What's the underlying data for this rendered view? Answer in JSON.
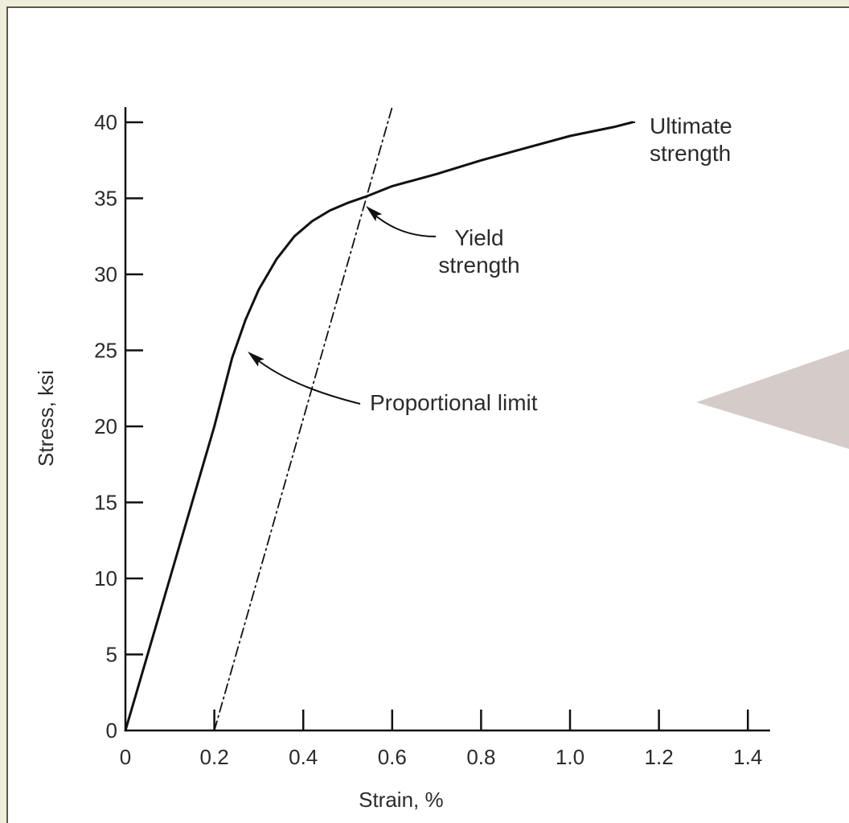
{
  "chart_data": {
    "type": "line",
    "xlabel": "Strain, %",
    "ylabel": "Stress, ksi",
    "xlim": [
      0,
      1.45
    ],
    "ylim": [
      0,
      41
    ],
    "x_ticks": [
      "0",
      "0.2",
      "0.4",
      "0.6",
      "0.8",
      "1.0",
      "1.2",
      "1.4"
    ],
    "y_ticks": [
      "0",
      "5",
      "10",
      "15",
      "20",
      "25",
      "30",
      "35",
      "40"
    ],
    "grid": false,
    "series": [
      {
        "style": "solid",
        "color": "#111111",
        "x": [
          0,
          0.1,
          0.2,
          0.24,
          0.27,
          0.3,
          0.34,
          0.38,
          0.42,
          0.46,
          0.5,
          0.54,
          0.6,
          0.7,
          0.8,
          0.9,
          1.0,
          1.1,
          1.14
        ],
        "y": [
          0,
          10,
          20,
          24.5,
          27,
          29,
          31,
          32.5,
          33.5,
          34.2,
          34.7,
          35.1,
          35.8,
          36.6,
          37.5,
          38.3,
          39.1,
          39.7,
          40
        ]
      },
      {
        "style": "dash-dot",
        "color": "#111111",
        "x": [
          0.2,
          0.6
        ],
        "y": [
          0,
          41
        ]
      }
    ],
    "annotations": [
      {
        "id": "ultimate",
        "lines": [
          "Ultimate",
          "strength"
        ],
        "point": [
          1.14,
          40
        ]
      },
      {
        "id": "yield",
        "lines": [
          "Yield",
          "strength"
        ],
        "point": [
          0.54,
          35
        ]
      },
      {
        "id": "proportional",
        "lines": [
          "Proportional limit"
        ],
        "point": [
          0.27,
          25.5
        ]
      }
    ]
  },
  "decor": {
    "right_pointer_color": "#d5cbc9"
  }
}
